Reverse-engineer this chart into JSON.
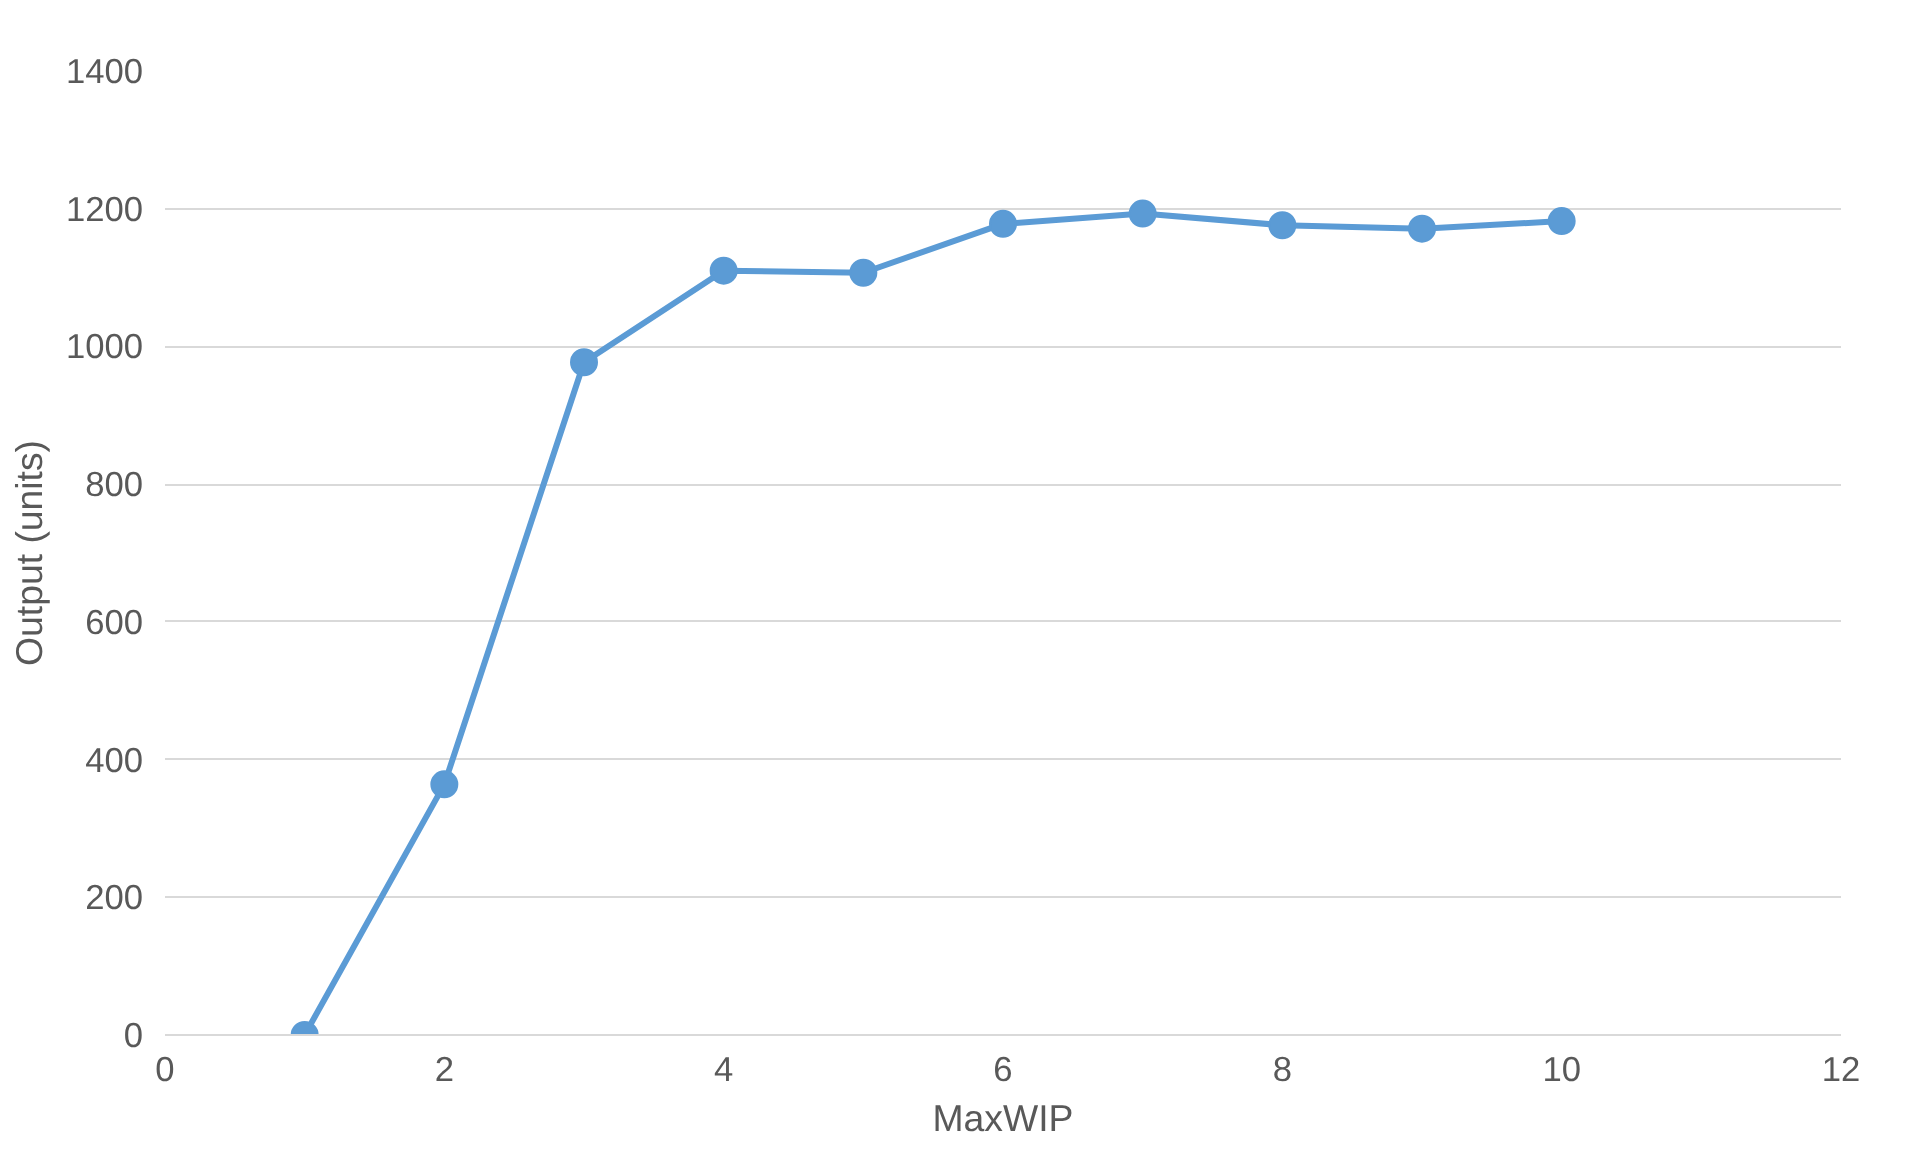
{
  "chart_data": {
    "type": "line",
    "xlabel": "MaxWIP",
    "ylabel": "Output (units)",
    "x": [
      1,
      2,
      3,
      4,
      5,
      6,
      7,
      8,
      9,
      10
    ],
    "series": [
      {
        "color": "#5b9bd5",
        "values": [
          0,
          364,
          977,
          1110,
          1107,
          1178,
          1193,
          1176,
          1171,
          1182
        ]
      }
    ],
    "xlim": [
      0,
      12
    ],
    "xticks": [
      0,
      2,
      4,
      6,
      8,
      10,
      12
    ],
    "ylim": [
      0,
      1400
    ],
    "yticks": [
      0,
      200,
      400,
      600,
      800,
      1000,
      1200,
      1400
    ],
    "grid": "y",
    "marker": "circle",
    "line_style": "solid"
  }
}
